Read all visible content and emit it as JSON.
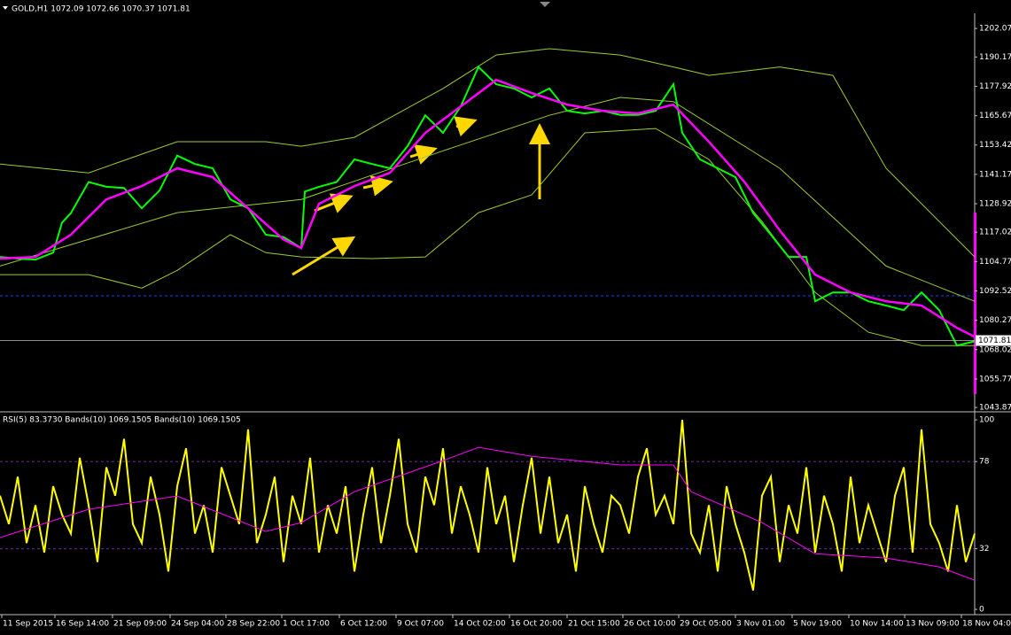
{
  "chart_data": [
    {
      "type": "line",
      "title": "GOLD,H1 1072.09 1072.66 1070.37 1071.81",
      "xlim": [
        0,
        550
      ],
      "ylim": [
        1042.8,
        1208.4
      ],
      "yticks": [
        1202.07,
        1190.17,
        1177.92,
        1165.67,
        1153.42,
        1141.17,
        1128.92,
        1117.02,
        1104.77,
        1092.52,
        1080.27,
        1068.02,
        1055.77,
        1043.87
      ],
      "last_price": 1071.81,
      "level_line": 1090.5,
      "series": [
        {
          "color": "#9acd32",
          "x": [
            0,
            50,
            100,
            150,
            170,
            200,
            250,
            280,
            310,
            350,
            380,
            400,
            440,
            470,
            500,
            550
          ],
          "values": [
            1145.5,
            1141.8,
            1154.8,
            1154.8,
            1152.9,
            1156.6,
            1177,
            1191,
            1193.6,
            1191,
            1186,
            1182.5,
            1186,
            1182.5,
            1143.7,
            1106.7
          ]
        },
        {
          "color": "#9acd32",
          "x": [
            0,
            50,
            80,
            100,
            130,
            150,
            170,
            210,
            240,
            270,
            300,
            330,
            370,
            400,
            430,
            460,
            490,
            520,
            550
          ],
          "values": [
            1099.3,
            1099.3,
            1093.7,
            1101.1,
            1116,
            1108.5,
            1106.7,
            1106,
            1106.7,
            1125.2,
            1132.6,
            1158.5,
            1160.3,
            1147.4,
            1121.5,
            1091.9,
            1075.3,
            1069.7,
            1069.7
          ]
        },
        {
          "color": "#9acd32",
          "x": [
            0,
            100,
            170,
            250,
            310,
            350,
            380,
            440,
            500,
            550
          ],
          "values": [
            1102.9,
            1125.2,
            1130.7,
            1151,
            1165.8,
            1173.3,
            1171.5,
            1143.7,
            1102.9,
            1088.2
          ]
        },
        {
          "color": "#00ff00",
          "x": [
            0,
            10,
            20,
            30,
            35,
            40,
            50,
            60,
            70,
            80,
            90,
            100,
            110,
            120,
            130,
            140,
            150,
            160,
            170,
            172,
            180,
            190,
            200,
            210,
            220,
            230,
            240,
            250,
            260,
            270,
            280,
            290,
            300,
            310,
            320,
            330,
            340,
            350,
            360,
            370,
            380,
            385,
            395,
            405,
            415,
            425,
            435,
            445,
            455,
            460,
            470,
            480,
            490,
            500,
            510,
            520,
            530,
            540,
            550
          ],
          "values": [
            1106.7,
            1106,
            1105.6,
            1108.5,
            1121,
            1125,
            1138,
            1136,
            1135.5,
            1127,
            1134.4,
            1149,
            1145.5,
            1143.7,
            1130.7,
            1127,
            1116,
            1115,
            1110.4,
            1134,
            1136,
            1138,
            1147.4,
            1145.5,
            1143.7,
            1153,
            1165.8,
            1158.5,
            1169.5,
            1186,
            1178.8,
            1177,
            1173.3,
            1177,
            1167.7,
            1166.6,
            1167.7,
            1166,
            1166,
            1167.7,
            1178.8,
            1158.5,
            1147.4,
            1143.7,
            1140,
            1125,
            1116,
            1106.7,
            1106.7,
            1088.2,
            1091.9,
            1091.9,
            1088.2,
            1086.4,
            1084.5,
            1091.9,
            1084.5,
            1069.7,
            1071.5
          ]
        },
        {
          "color": "#ff00ff",
          "x": [
            0,
            20,
            40,
            60,
            80,
            100,
            120,
            140,
            160,
            170,
            180,
            200,
            220,
            240,
            260,
            280,
            300,
            320,
            340,
            360,
            380,
            400,
            420,
            440,
            460,
            480,
            500,
            520,
            540,
            550
          ],
          "values": [
            1106,
            1106.7,
            1116,
            1130.7,
            1136.3,
            1143.7,
            1140,
            1127,
            1114,
            1110.4,
            1128.9,
            1136.3,
            1141.8,
            1158.5,
            1169.5,
            1180.6,
            1175.1,
            1170.3,
            1167.7,
            1166.6,
            1170.3,
            1154.8,
            1138.1,
            1117.8,
            1099.3,
            1091.9,
            1088.2,
            1086.4,
            1077.1,
            1073.4
          ]
        }
      ]
    },
    {
      "type": "line",
      "title": "RSI(5) 83.3730 Bands(10) 1069.1505 Bands(10) 1069.1505",
      "xlim": [
        0,
        550
      ],
      "ylim": [
        -2.3,
        103.3
      ],
      "yticks": [
        0,
        32,
        78,
        100
      ],
      "levels": [
        32,
        78
      ],
      "xticks": [
        {
          "value": 1,
          "label": "11 Sep 2015"
        },
        {
          "value": 31,
          "label": "16 Sep 14:00"
        },
        {
          "value": 63.5,
          "label": "21 Sep 09:00"
        },
        {
          "value": 96,
          "label": "24 Sep 04:00"
        },
        {
          "value": 127.5,
          "label": "28 Sep 22:00"
        },
        {
          "value": 159,
          "label": "1 Oct 17:00"
        },
        {
          "value": 191.5,
          "label": "6 Oct 12:00"
        },
        {
          "value": 223.5,
          "label": "9 Oct 07:00"
        },
        {
          "value": 255.5,
          "label": "14 Oct 02:00"
        },
        {
          "value": 287.5,
          "label": "16 Oct 20:00"
        },
        {
          "value": 320,
          "label": "21 Oct 15:00"
        },
        {
          "value": 351.5,
          "label": "26 Oct 10:00"
        },
        {
          "value": 383,
          "label": "29 Oct 05:00"
        },
        {
          "value": 415,
          "label": "3 Nov 01:00"
        },
        {
          "value": 447,
          "label": "5 Nov 19:00"
        },
        {
          "value": 479,
          "label": "10 Nov 14:00"
        },
        {
          "value": 510.5,
          "label": "13 Nov 09:00"
        },
        {
          "value": 542.5,
          "label": "18 Nov 04:00"
        }
      ],
      "series": [
        {
          "color": "#ffff00",
          "x": [
            0,
            5,
            10,
            15,
            20,
            25,
            30,
            35,
            40,
            45,
            50,
            55,
            60,
            65,
            70,
            75,
            80,
            85,
            90,
            95,
            100,
            105,
            110,
            115,
            120,
            125,
            130,
            135,
            140,
            145,
            150,
            155,
            160,
            165,
            170,
            175,
            180,
            185,
            190,
            195,
            200,
            205,
            210,
            215,
            220,
            225,
            230,
            235,
            240,
            245,
            250,
            255,
            260,
            265,
            270,
            275,
            280,
            285,
            290,
            295,
            300,
            305,
            310,
            315,
            320,
            325,
            330,
            335,
            340,
            345,
            350,
            355,
            360,
            365,
            370,
            375,
            380,
            385,
            390,
            395,
            400,
            405,
            410,
            415,
            420,
            425,
            430,
            435,
            440,
            445,
            450,
            455,
            460,
            465,
            470,
            475,
            480,
            485,
            490,
            495,
            500,
            505,
            510,
            515,
            520,
            525,
            530,
            535,
            540,
            545,
            550
          ],
          "values": [
            60,
            45,
            70,
            35,
            55,
            30,
            65,
            50,
            40,
            80,
            55,
            25,
            75,
            60,
            90,
            45,
            35,
            70,
            50,
            20,
            65,
            85,
            40,
            55,
            30,
            75,
            60,
            45,
            95,
            35,
            50,
            70,
            25,
            60,
            45,
            80,
            30,
            55,
            40,
            65,
            20,
            50,
            75,
            35,
            60,
            90,
            45,
            30,
            70,
            55,
            85,
            40,
            65,
            50,
            30,
            75,
            45,
            60,
            25,
            55,
            80,
            40,
            70,
            35,
            50,
            20,
            65,
            45,
            30,
            60,
            55,
            40,
            70,
            85,
            50,
            60,
            45,
            100,
            40,
            30,
            55,
            20,
            65,
            45,
            30,
            10,
            60,
            70,
            25,
            55,
            40,
            75,
            30,
            60,
            45,
            20,
            70,
            35,
            55,
            40,
            25,
            60,
            75,
            30,
            95,
            45,
            35,
            20,
            55,
            25,
            40
          ]
        },
        {
          "color": "#ff00ff",
          "x": [
            0,
            50,
            100,
            150,
            170,
            200,
            250,
            270,
            300,
            350,
            380,
            390,
            430,
            460,
            500,
            530,
            550
          ],
          "values": [
            37.9,
            52.8,
            59.8,
            41.1,
            45.8,
            62.1,
            78.5,
            85.5,
            80.8,
            76.2,
            76.2,
            62.1,
            45.8,
            29.4,
            27.1,
            22.4,
            15.4
          ]
        }
      ]
    }
  ]
}
